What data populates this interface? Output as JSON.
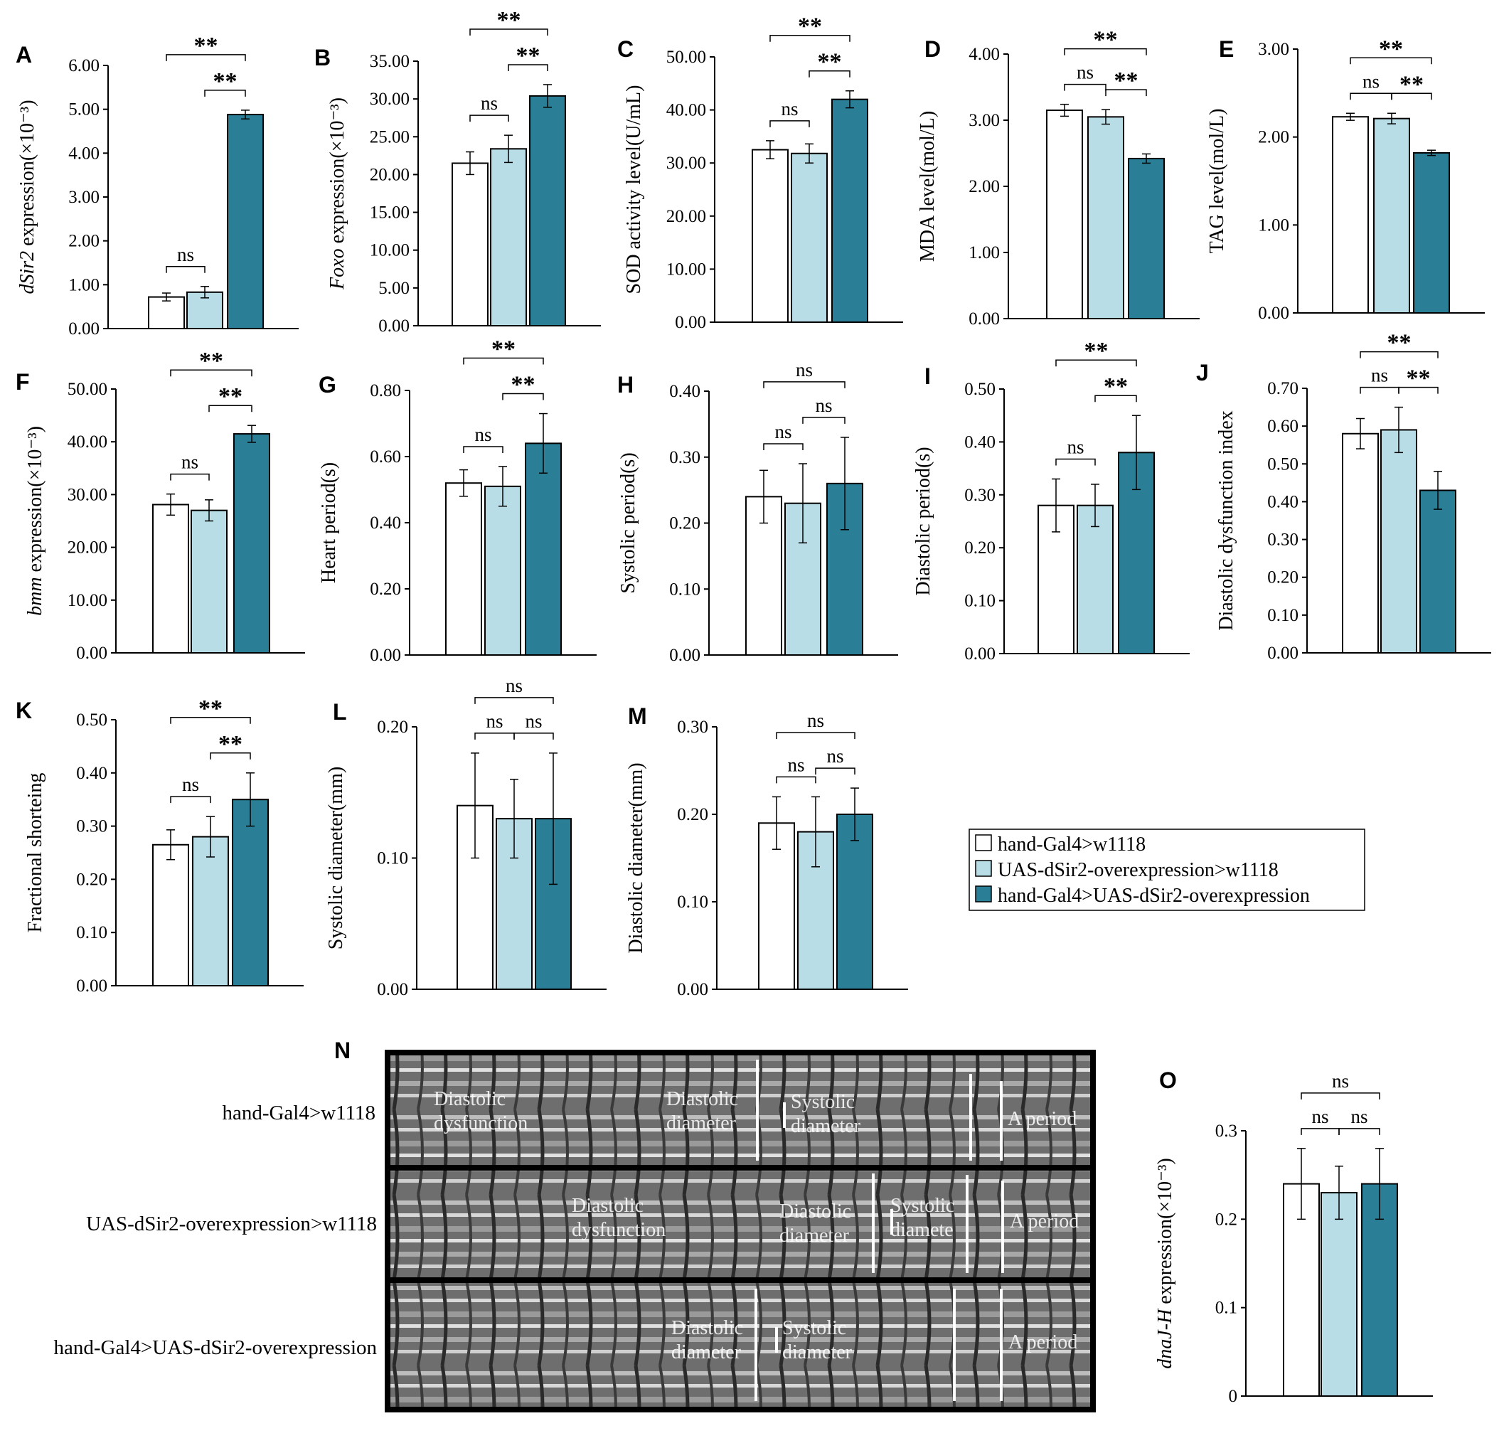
{
  "colors": {
    "g1": "#ffffff",
    "g2": "#b8dde7",
    "g3": "#2a7f96"
  },
  "legend": [
    "hand-Gal4>w1118",
    "UAS-dSir2-overexpression>w1118",
    "hand-Gal4>UAS-dSir2-overexpression"
  ],
  "chart_data": [
    {
      "id": "A",
      "type": "bar",
      "ylabel_italic": "dSir2",
      "ylabel_rest": " expression(×10⁻³)",
      "ticks": [
        "0.00",
        "1.00",
        "2.00",
        "3.00",
        "4.00",
        "5.00",
        "6.00"
      ],
      "ylim": [
        0,
        6
      ],
      "values": [
        0.72,
        0.83,
        4.88
      ],
      "errors": [
        0.09,
        0.13,
        0.1
      ],
      "sig": [
        [
          "1",
          "2",
          "ns"
        ],
        [
          "2",
          "3",
          "**"
        ],
        [
          "1",
          "3",
          "**"
        ]
      ]
    },
    {
      "id": "B",
      "type": "bar",
      "ylabel_italic": "Foxo",
      "ylabel_rest": " expression(×10⁻³)",
      "ticks": [
        "0.00",
        "5.00",
        "10.00",
        "15.00",
        "20.00",
        "25.00",
        "30.00",
        "35.00"
      ],
      "ylim": [
        0,
        35
      ],
      "values": [
        21.5,
        23.4,
        30.4
      ],
      "errors": [
        1.5,
        1.8,
        1.5
      ],
      "sig": [
        [
          "1",
          "2",
          "ns"
        ],
        [
          "2",
          "3",
          "**"
        ],
        [
          "1",
          "3",
          "**"
        ]
      ]
    },
    {
      "id": "C",
      "type": "bar",
      "ylabel_italic": "",
      "ylabel_rest": "SOD activity level(U/mL)",
      "ticks": [
        "0.00",
        "10.00",
        "20.00",
        "30.00",
        "40.00",
        "50.00"
      ],
      "ylim": [
        0,
        50
      ],
      "values": [
        32.5,
        31.8,
        42.0
      ],
      "errors": [
        1.7,
        1.8,
        1.6
      ],
      "sig": [
        [
          "1",
          "2",
          "ns"
        ],
        [
          "2",
          "3",
          "**"
        ],
        [
          "1",
          "3",
          "**"
        ]
      ]
    },
    {
      "id": "D",
      "type": "bar",
      "ylabel_italic": "",
      "ylabel_rest": "MDA level(mol/L)",
      "ticks": [
        "0.00",
        "1.00",
        "2.00",
        "3.00",
        "4.00"
      ],
      "ylim": [
        0,
        4
      ],
      "values": [
        3.15,
        3.05,
        2.42
      ],
      "errors": [
        0.09,
        0.11,
        0.07
      ],
      "sig": [
        [
          "1",
          "2",
          "ns"
        ],
        [
          "2",
          "3",
          "**"
        ],
        [
          "1",
          "3",
          "**"
        ]
      ]
    },
    {
      "id": "E",
      "type": "bar",
      "ylabel_italic": "",
      "ylabel_rest": "TAG level(mol/L)",
      "ticks": [
        "0.00",
        "1.00",
        "2.00",
        "3.00"
      ],
      "ylim": [
        0,
        3
      ],
      "values": [
        2.23,
        2.21,
        1.82
      ],
      "errors": [
        0.04,
        0.06,
        0.03
      ],
      "sig": [
        [
          "1",
          "2",
          "ns"
        ],
        [
          "2",
          "3",
          "**"
        ],
        [
          "1",
          "3",
          "**"
        ]
      ]
    },
    {
      "id": "F",
      "type": "bar",
      "ylabel_italic": "bmm",
      "ylabel_rest": " expression(×10⁻³)",
      "ticks": [
        "0.00",
        "10.00",
        "20.00",
        "30.00",
        "40.00",
        "50.00"
      ],
      "ylim": [
        0,
        50
      ],
      "values": [
        28.1,
        27.0,
        41.5
      ],
      "errors": [
        2.0,
        2.0,
        1.6
      ],
      "sig": [
        [
          "1",
          "2",
          "ns"
        ],
        [
          "2",
          "3",
          "**"
        ],
        [
          "1",
          "3",
          "**"
        ]
      ]
    },
    {
      "id": "G",
      "type": "bar",
      "ylabel_italic": "",
      "ylabel_rest": "Heart period(s)",
      "ticks": [
        "0.00",
        "0.20",
        "0.40",
        "0.60",
        "0.80"
      ],
      "ylim": [
        0,
        0.8
      ],
      "values": [
        0.52,
        0.51,
        0.64
      ],
      "errors": [
        0.04,
        0.06,
        0.09
      ],
      "sig": [
        [
          "1",
          "2",
          "ns"
        ],
        [
          "2",
          "3",
          "**"
        ],
        [
          "1",
          "3",
          "**"
        ]
      ]
    },
    {
      "id": "H",
      "type": "bar",
      "ylabel_italic": "",
      "ylabel_rest": "Systolic period(s)",
      "ticks": [
        "0.00",
        "0.10",
        "0.20",
        "0.30",
        "0.40"
      ],
      "ylim": [
        0,
        0.4
      ],
      "values": [
        0.24,
        0.23,
        0.26
      ],
      "errors": [
        0.04,
        0.06,
        0.07
      ],
      "sig": [
        [
          "1",
          "2",
          "ns"
        ],
        [
          "2",
          "3",
          "ns"
        ],
        [
          "1",
          "3",
          "ns"
        ]
      ]
    },
    {
      "id": "I",
      "type": "bar",
      "ylabel_italic": "",
      "ylabel_rest": "Diastolic period(s)",
      "ticks": [
        "0.00",
        "0.10",
        "0.20",
        "0.30",
        "0.40",
        "0.50"
      ],
      "ylim": [
        0,
        0.5
      ],
      "values": [
        0.28,
        0.28,
        0.38
      ],
      "errors": [
        0.05,
        0.04,
        0.07
      ],
      "sig": [
        [
          "1",
          "2",
          "ns"
        ],
        [
          "2",
          "3",
          "**"
        ],
        [
          "1",
          "3",
          "**"
        ]
      ]
    },
    {
      "id": "J",
      "type": "bar",
      "ylabel_italic": "",
      "ylabel_rest": "Diastolic dysfunction index",
      "ticks": [
        "0.00",
        "0.10",
        "0.20",
        "0.30",
        "0.40",
        "0.50",
        "0.60",
        "0.70"
      ],
      "ylim": [
        0,
        0.7
      ],
      "values": [
        0.58,
        0.59,
        0.43
      ],
      "errors": [
        0.04,
        0.06,
        0.05
      ],
      "sig": [
        [
          "1",
          "2",
          "ns"
        ],
        [
          "2",
          "3",
          "**"
        ],
        [
          "1",
          "3",
          "**"
        ]
      ]
    },
    {
      "id": "K",
      "type": "bar",
      "ylabel_italic": "",
      "ylabel_rest": "Fractional shorteing",
      "ticks": [
        "0.00",
        "0.10",
        "0.20",
        "0.30",
        "0.40",
        "0.50"
      ],
      "ylim": [
        0,
        0.5
      ],
      "values": [
        0.265,
        0.28,
        0.35
      ],
      "errors": [
        0.028,
        0.038,
        0.05
      ],
      "sig": [
        [
          "1",
          "2",
          "ns"
        ],
        [
          "2",
          "3",
          "**"
        ],
        [
          "1",
          "3",
          "**"
        ]
      ]
    },
    {
      "id": "L",
      "type": "bar",
      "ylabel_italic": "",
      "ylabel_rest": "Systolic diameter(mm)",
      "ticks": [
        "0.00",
        "0.10",
        "0.20"
      ],
      "ylim": [
        0,
        0.2
      ],
      "values": [
        0.14,
        0.13,
        0.13
      ],
      "errors": [
        0.04,
        0.03,
        0.05
      ],
      "sig": [
        [
          "1",
          "2",
          "ns"
        ],
        [
          "2",
          "3",
          "ns"
        ],
        [
          "1",
          "3",
          "ns"
        ]
      ]
    },
    {
      "id": "M",
      "type": "bar",
      "ylabel_italic": "",
      "ylabel_rest": "Diastolic diameter(mm)",
      "ticks": [
        "0.00",
        "0.10",
        "0.20",
        "0.30"
      ],
      "ylim": [
        0,
        0.3
      ],
      "values": [
        0.19,
        0.18,
        0.2
      ],
      "errors": [
        0.03,
        0.04,
        0.03
      ],
      "sig": [
        [
          "1",
          "2",
          "ns"
        ],
        [
          "2",
          "3",
          "ns"
        ],
        [
          "1",
          "3",
          "ns"
        ]
      ]
    },
    {
      "id": "O",
      "type": "bar",
      "ylabel_italic": "dnaJ-H",
      "ylabel_rest": " expression(×10⁻³)",
      "ticks": [
        "0",
        "0.1",
        "0.2",
        "0.3"
      ],
      "ylim": [
        0,
        0.3
      ],
      "values": [
        0.24,
        0.23,
        0.24
      ],
      "errors": [
        0.04,
        0.03,
        0.04
      ],
      "sig": [
        [
          "1",
          "2",
          "ns"
        ],
        [
          "2",
          "3",
          "ns"
        ],
        [
          "1",
          "3",
          "ns"
        ]
      ]
    }
  ],
  "panel_n": {
    "label": "N",
    "rows": [
      {
        "label": "hand-Gal4>w1118",
        "annotations": [
          "Diastolic dysfunction",
          "Diastolic diameter",
          "Systolic diameter",
          "A period"
        ]
      },
      {
        "label": "UAS-dSir2-overexpression>w1118",
        "annotations": [
          "Diastolic dysfunction",
          "Diastolic diameter",
          "Systolic diameter",
          "A period"
        ]
      },
      {
        "label": "hand-Gal4>UAS-dSir2-overexpression",
        "annotations": [
          "Diastolic diameter",
          "Systolic diameter",
          "A period"
        ]
      }
    ]
  }
}
